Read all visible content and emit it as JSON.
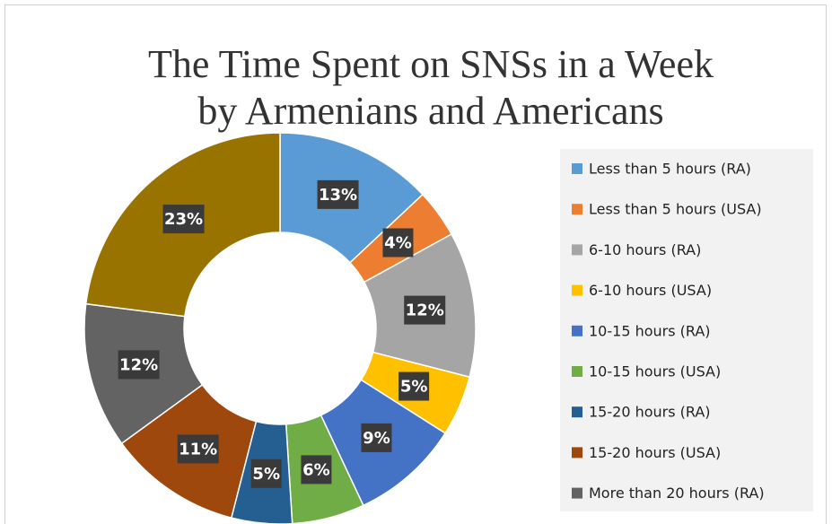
{
  "chart_data": {
    "type": "doughnut",
    "title": [
      "The Time Spent on SNSs in a Week",
      "by Armenians and Americans"
    ],
    "categories": [
      "Less than 5 hours (RA)",
      "Less than 5 hours (USA)",
      "6-10 hours (RA)",
      "6-10 hours (USA)",
      "10-15 hours (RA)",
      "10-15 hours (USA)",
      "15-20 hours (RA)",
      "15-20 hours (USA)",
      "More than 20 hours (RA)",
      null
    ],
    "values": [
      13,
      4,
      12,
      5,
      9,
      6,
      5,
      11,
      12,
      23
    ],
    "value_labels": [
      "13%",
      "4%",
      "12%",
      "5%",
      "9%",
      "6%",
      "5%",
      "11%",
      "12%",
      "23%"
    ],
    "colors": [
      "#5b9bd5",
      "#ed7d31",
      "#a5a5a5",
      "#ffc000",
      "#4472c4",
      "#70ad47",
      "#255e91",
      "#9e480e",
      "#636363",
      "#997300"
    ],
    "legend": "right"
  }
}
